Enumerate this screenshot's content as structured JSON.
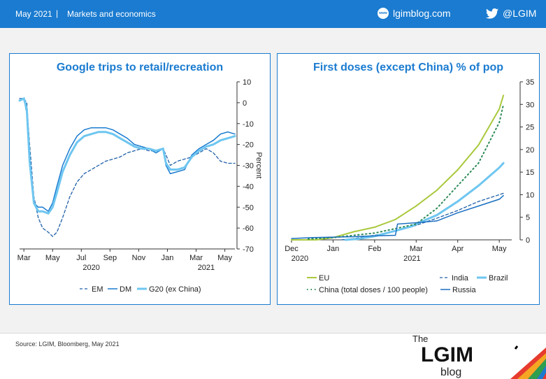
{
  "header": {
    "date": "May 2021",
    "separator": "|",
    "section": "Markets and economics",
    "site": "lgimblog.com",
    "twitter": "@LGIM",
    "www": "www"
  },
  "colors": {
    "brand": "#1a7bd0",
    "em": "#1f5fa8",
    "dm": "#1a7bd0",
    "g20": "#6ec6f0",
    "eu": "#a9c93c",
    "india": "#1f5fa8",
    "brazil": "#6ec6f0",
    "china": "#2e8b57",
    "russia": "#1a6fc0"
  },
  "footer": {
    "source": "Source: LGIM, Bloomberg, May 2021",
    "logo_the": "The",
    "logo_lgim": "LGIM",
    "logo_blog": "blog"
  },
  "chart_data": [
    {
      "type": "line",
      "title": "Google trips to retail/recreation",
      "ylabel": "Percent",
      "ylim": [
        -70,
        10
      ],
      "yticks": [
        10,
        0,
        -10,
        -20,
        -30,
        -40,
        -50,
        -60,
        -70
      ],
      "x_range": [
        0,
        15
      ],
      "x_tick_labels": [
        {
          "label": "Mar",
          "x": 0.3
        },
        {
          "label": "May",
          "x": 2.3
        },
        {
          "label": "Jul",
          "x": 4.3
        },
        {
          "label": "Sep",
          "x": 6.3
        },
        {
          "label": "Nov",
          "x": 8.3
        },
        {
          "label": "Jan",
          "x": 10.3
        },
        {
          "label": "Mar",
          "x": 12.3
        },
        {
          "label": "May",
          "x": 14.3
        }
      ],
      "year_labels": [
        {
          "label": "2020",
          "x": 5
        },
        {
          "label": "2021",
          "x": 13
        }
      ],
      "legend_position": "bottom",
      "series": [
        {
          "name": "EM",
          "style": "dashed",
          "x": [
            0,
            0.3,
            0.5,
            0.7,
            1,
            1.3,
            1.6,
            2,
            2.3,
            2.6,
            3,
            3.5,
            4,
            4.5,
            5,
            5.5,
            6,
            6.5,
            7,
            7.5,
            8,
            8.5,
            9,
            9.5,
            10,
            10.2,
            10.5,
            11,
            11.5,
            12,
            12.5,
            13,
            13.5,
            14,
            14.5,
            15
          ],
          "y": [
            2,
            2,
            0,
            -20,
            -45,
            -55,
            -60,
            -62,
            -64,
            -62,
            -55,
            -45,
            -38,
            -34,
            -32,
            -30,
            -28,
            -27,
            -26,
            -24,
            -23,
            -22,
            -23,
            -23,
            -22,
            -25,
            -30,
            -28,
            -27,
            -26,
            -24,
            -22,
            -24,
            -28,
            -29,
            -29
          ]
        },
        {
          "name": "DM",
          "style": "solid",
          "x": [
            0,
            0.3,
            0.5,
            0.7,
            1,
            1.3,
            1.6,
            2,
            2.3,
            2.6,
            3,
            3.5,
            4,
            4.5,
            5,
            5.5,
            6,
            6.5,
            7,
            7.5,
            8,
            8.5,
            9,
            9.5,
            10,
            10.2,
            10.5,
            11,
            11.5,
            12,
            12.5,
            13,
            13.5,
            14,
            14.5,
            15
          ],
          "y": [
            1,
            2,
            -5,
            -30,
            -48,
            -50,
            -50,
            -52,
            -48,
            -40,
            -30,
            -22,
            -16,
            -13,
            -12,
            -12,
            -12,
            -13,
            -15,
            -17,
            -20,
            -21,
            -22,
            -24,
            -22,
            -30,
            -34,
            -33,
            -32,
            -25,
            -22,
            -20,
            -18,
            -15,
            -14,
            -15
          ]
        },
        {
          "name": "G20 (ex China)",
          "style": "thick",
          "x": [
            0,
            0.3,
            0.5,
            0.7,
            1,
            1.3,
            1.6,
            2,
            2.3,
            2.6,
            3,
            3.5,
            4,
            4.5,
            5,
            5.5,
            6,
            6.5,
            7,
            7.5,
            8,
            8.5,
            9,
            9.5,
            10,
            10.2,
            10.5,
            11,
            11.5,
            12,
            12.5,
            13,
            13.5,
            14,
            14.5,
            15
          ],
          "y": [
            1,
            2,
            -3,
            -28,
            -48,
            -52,
            -52,
            -53,
            -50,
            -43,
            -33,
            -25,
            -19,
            -16,
            -15,
            -14,
            -14,
            -15,
            -17,
            -19,
            -21,
            -22,
            -22,
            -23,
            -22,
            -29,
            -32,
            -32,
            -31,
            -26,
            -23,
            -21,
            -20,
            -18,
            -17,
            -16
          ]
        }
      ]
    },
    {
      "type": "line",
      "title": "First doses (except China) % of pop",
      "ylim": [
        0,
        35
      ],
      "yticks": [
        35,
        30,
        25,
        20,
        15,
        10,
        5,
        0
      ],
      "x_range": [
        0,
        5.3
      ],
      "x_tick_labels": [
        {
          "label": "Dec",
          "x": 0
        },
        {
          "label": "Jan",
          "x": 1
        },
        {
          "label": "Feb",
          "x": 2
        },
        {
          "label": "Mar",
          "x": 3
        },
        {
          "label": "Apr",
          "x": 4
        },
        {
          "label": "May",
          "x": 5
        }
      ],
      "year_labels": [
        {
          "label": "2020",
          "x": 0.2
        },
        {
          "label": "2021",
          "x": 2.9
        }
      ],
      "legend_position": "bottom",
      "series": [
        {
          "name": "EU",
          "style": "solid-thick",
          "x": [
            0,
            0.6,
            1,
            1.5,
            2,
            2.5,
            3,
            3.5,
            4,
            4.5,
            5,
            5.1
          ],
          "y": [
            0,
            0,
            0.5,
            1.8,
            2.8,
            4.5,
            7.5,
            11,
            15.5,
            21,
            29,
            32
          ]
        },
        {
          "name": "India",
          "style": "dashed",
          "x": [
            1.2,
            1.5,
            2,
            2.5,
            3,
            3.5,
            4,
            4.5,
            5,
            5.1
          ],
          "y": [
            0,
            0.3,
            1,
            2,
            3.2,
            4.8,
            6.5,
            8.5,
            10,
            10.3
          ]
        },
        {
          "name": "Brazil",
          "style": "thick",
          "x": [
            1.3,
            1.6,
            2,
            2.5,
            2.9,
            3,
            3.5,
            4,
            4.5,
            5,
            5.1
          ],
          "y": [
            0,
            0.2,
            0.8,
            2,
            3,
            3.5,
            5.5,
            8.5,
            12,
            16,
            17
          ]
        },
        {
          "name": "China (total doses / 100 people)",
          "style": "dotted",
          "x": [
            0.4,
            1,
            1.5,
            2,
            2.5,
            3,
            3.5,
            4,
            4.5,
            5,
            5.1
          ],
          "y": [
            0.2,
            0.5,
            1,
            1.5,
            2.5,
            3.5,
            7,
            12,
            17,
            26,
            30
          ]
        },
        {
          "name": "Russia",
          "style": "solid",
          "x": [
            0,
            0.5,
            1,
            1.5,
            2,
            2.5,
            2.55,
            3,
            3.5,
            4,
            4.5,
            5,
            5.1
          ],
          "y": [
            0.3,
            0.5,
            0.6,
            0.7,
            0.9,
            1,
            3.5,
            3.8,
            4.2,
            6,
            7.5,
            9,
            9.8
          ]
        }
      ]
    }
  ]
}
